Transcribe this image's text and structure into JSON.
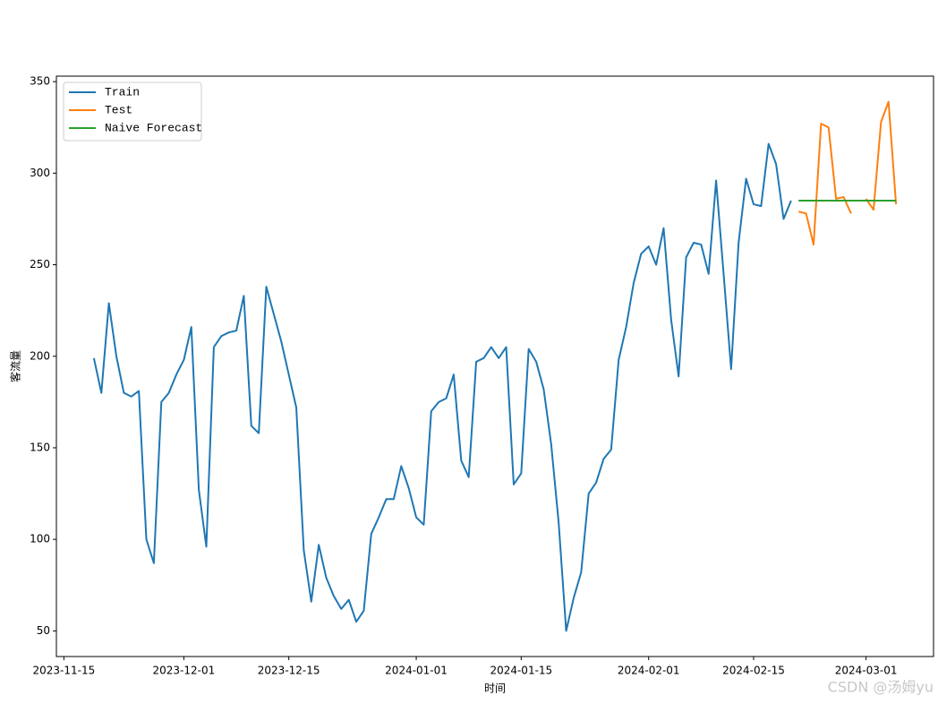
{
  "chart_data": {
    "type": "line",
    "x_label": "时间",
    "y_label": "客流量",
    "watermark": "CSDN @汤姆yu",
    "x": [
      "2023-11-19",
      "2023-11-20",
      "2023-11-21",
      "2023-11-22",
      "2023-11-23",
      "2023-11-24",
      "2023-11-25",
      "2023-11-26",
      "2023-11-27",
      "2023-11-28",
      "2023-11-29",
      "2023-11-30",
      "2023-12-01",
      "2023-12-02",
      "2023-12-03",
      "2023-12-04",
      "2023-12-05",
      "2023-12-06",
      "2023-12-07",
      "2023-12-08",
      "2023-12-09",
      "2023-12-10",
      "2023-12-11",
      "2023-12-12",
      "2023-12-13",
      "2023-12-14",
      "2023-12-15",
      "2023-12-16",
      "2023-12-17",
      "2023-12-18",
      "2023-12-19",
      "2023-12-20",
      "2023-12-21",
      "2023-12-22",
      "2023-12-23",
      "2023-12-24",
      "2023-12-25",
      "2023-12-26",
      "2023-12-27",
      "2023-12-28",
      "2023-12-29",
      "2023-12-30",
      "2023-12-31",
      "2024-01-01",
      "2024-01-02",
      "2024-01-03",
      "2024-01-04",
      "2024-01-05",
      "2024-01-06",
      "2024-01-07",
      "2024-01-08",
      "2024-01-09",
      "2024-01-10",
      "2024-01-11",
      "2024-01-12",
      "2024-01-13",
      "2024-01-14",
      "2024-01-15",
      "2024-01-16",
      "2024-01-17",
      "2024-01-18",
      "2024-01-19",
      "2024-01-20",
      "2024-01-21",
      "2024-01-22",
      "2024-01-23",
      "2024-01-24",
      "2024-01-25",
      "2024-01-26",
      "2024-01-27",
      "2024-01-28",
      "2024-01-29",
      "2024-01-30",
      "2024-01-31",
      "2024-02-01",
      "2024-02-02",
      "2024-02-03",
      "2024-02-04",
      "2024-02-05",
      "2024-02-06",
      "2024-02-07",
      "2024-02-08",
      "2024-02-09",
      "2024-02-10",
      "2024-02-11",
      "2024-02-12",
      "2024-02-13",
      "2024-02-14",
      "2024-02-15",
      "2024-02-16",
      "2024-02-17",
      "2024-02-18",
      "2024-02-19",
      "2024-02-20",
      "2024-02-21",
      "2024-02-22",
      "2024-02-23",
      "2024-02-24",
      "2024-02-25",
      "2024-02-26",
      "2024-02-27",
      "2024-02-28",
      "2024-02-29",
      "2024-03-01",
      "2024-03-02",
      "2024-03-03",
      "2024-03-04",
      "2024-03-05"
    ],
    "series": [
      {
        "name": "Train",
        "color": "#1f77b4",
        "values": [
          199,
          180,
          229,
          200,
          180,
          178,
          181,
          100,
          87,
          175,
          180,
          190,
          198,
          216,
          127,
          96,
          205,
          211,
          213,
          214,
          233,
          162,
          158,
          238,
          223,
          208,
          190,
          172,
          94,
          66,
          97,
          79,
          69,
          62,
          67,
          55,
          61,
          103,
          112,
          122,
          122,
          140,
          128,
          112,
          108,
          170,
          175,
          177,
          190,
          143,
          134,
          197,
          199,
          205,
          199,
          205,
          130,
          136,
          204,
          197,
          182,
          152,
          109,
          50,
          68,
          82,
          125,
          131,
          144,
          149,
          198,
          216,
          240,
          256,
          260,
          250,
          270,
          220,
          189,
          254,
          262,
          261,
          245,
          296,
          245,
          193,
          262,
          297,
          283,
          282,
          316,
          305,
          275,
          285,
          null,
          null,
          null,
          null,
          null,
          null,
          null,
          null,
          null,
          null,
          null,
          null,
          null,
          null
        ]
      },
      {
        "name": "Test",
        "color": "#ff7f0e",
        "values": [
          null,
          null,
          null,
          null,
          null,
          null,
          null,
          null,
          null,
          null,
          null,
          null,
          null,
          null,
          null,
          null,
          null,
          null,
          null,
          null,
          null,
          null,
          null,
          null,
          null,
          null,
          null,
          null,
          null,
          null,
          null,
          null,
          null,
          null,
          null,
          null,
          null,
          null,
          null,
          null,
          null,
          null,
          null,
          null,
          null,
          null,
          null,
          null,
          null,
          null,
          null,
          null,
          null,
          null,
          null,
          null,
          null,
          null,
          null,
          null,
          null,
          null,
          null,
          null,
          null,
          null,
          null,
          null,
          null,
          null,
          null,
          null,
          null,
          null,
          null,
          null,
          null,
          null,
          null,
          null,
          null,
          null,
          null,
          null,
          null,
          null,
          null,
          null,
          null,
          null,
          null,
          null,
          null,
          null,
          279,
          278,
          261,
          327,
          325,
          286,
          287,
          278,
          null,
          286,
          280,
          328,
          339,
          283
        ]
      },
      {
        "name": "Naive Forecast",
        "color": "#2ca02c",
        "values": [
          null,
          null,
          null,
          null,
          null,
          null,
          null,
          null,
          null,
          null,
          null,
          null,
          null,
          null,
          null,
          null,
          null,
          null,
          null,
          null,
          null,
          null,
          null,
          null,
          null,
          null,
          null,
          null,
          null,
          null,
          null,
          null,
          null,
          null,
          null,
          null,
          null,
          null,
          null,
          null,
          null,
          null,
          null,
          null,
          null,
          null,
          null,
          null,
          null,
          null,
          null,
          null,
          null,
          null,
          null,
          null,
          null,
          null,
          null,
          null,
          null,
          null,
          null,
          null,
          null,
          null,
          null,
          null,
          null,
          null,
          null,
          null,
          null,
          null,
          null,
          null,
          null,
          null,
          null,
          null,
          null,
          null,
          null,
          null,
          null,
          null,
          null,
          null,
          null,
          null,
          null,
          null,
          null,
          null,
          285,
          285,
          285,
          285,
          285,
          285,
          285,
          285,
          285,
          285,
          285,
          285,
          285,
          285
        ]
      }
    ],
    "xlim": [
      "2023-11-14",
      "2024-03-10"
    ],
    "xticks": [
      "2023-11-15",
      "2023-12-01",
      "2023-12-15",
      "2024-01-01",
      "2024-01-15",
      "2024-02-01",
      "2024-02-15",
      "2024-03-01"
    ],
    "ylim": [
      36,
      353
    ],
    "yticks": [
      50,
      100,
      150,
      200,
      250,
      300,
      350
    ],
    "legend": "upper left",
    "grid": false
  }
}
